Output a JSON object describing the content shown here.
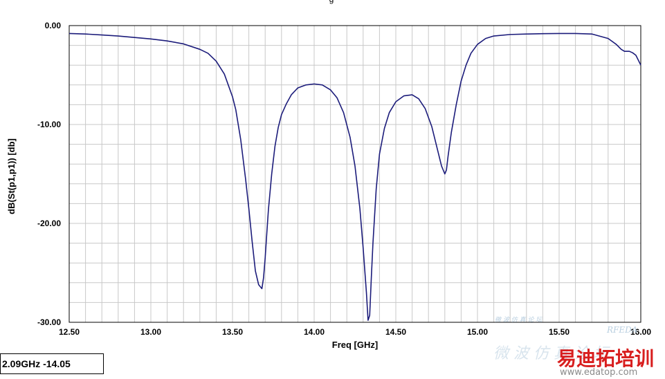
{
  "chart_data": {
    "type": "line",
    "title": "",
    "title_fragment": "g",
    "xlabel": "Freq [GHz]",
    "ylabel": "dB(St(p1,p1)) [db]",
    "xlim": [
      12.5,
      16.0
    ],
    "ylim": [
      -30,
      0
    ],
    "x_ticks": [
      "12.50",
      "13.00",
      "13.50",
      "14.00",
      "14.50",
      "15.00",
      "15.50",
      "16.00"
    ],
    "y_ticks": [
      "0.00",
      "-10.00",
      "-20.00",
      "-30.00"
    ],
    "grid": true,
    "line_color": "#1b1b7a",
    "series": [
      {
        "x": [
          12.5,
          12.6,
          12.7,
          12.8,
          12.9,
          13.0,
          13.1,
          13.2,
          13.3,
          13.35,
          13.4,
          13.45,
          13.5,
          13.52,
          13.55,
          13.58,
          13.6,
          13.62,
          13.64,
          13.66,
          13.68,
          13.69,
          13.7,
          13.71,
          13.72,
          13.74,
          13.76,
          13.78,
          13.8,
          13.83,
          13.86,
          13.9,
          13.95,
          14.0,
          14.05,
          14.1,
          14.14,
          14.18,
          14.22,
          14.25,
          14.28,
          14.3,
          14.32,
          14.33,
          14.34,
          14.35,
          14.36,
          14.38,
          14.4,
          14.43,
          14.46,
          14.5,
          14.55,
          14.6,
          14.64,
          14.68,
          14.72,
          14.75,
          14.78,
          14.8,
          14.81,
          14.82,
          14.84,
          14.87,
          14.9,
          14.93,
          14.96,
          15.0,
          15.05,
          15.1,
          15.2,
          15.3,
          15.4,
          15.5,
          15.6,
          15.7,
          15.8,
          15.85,
          15.88,
          15.9,
          15.93,
          15.95,
          15.97,
          16.0
        ],
        "y": [
          -0.8,
          -0.85,
          -0.95,
          -1.05,
          -1.2,
          -1.35,
          -1.55,
          -1.85,
          -2.4,
          -2.8,
          -3.6,
          -4.9,
          -7.2,
          -8.5,
          -11.5,
          -15.5,
          -18.5,
          -21.8,
          -24.8,
          -26.2,
          -26.6,
          -25.5,
          -23.5,
          -21.0,
          -18.6,
          -15.0,
          -12.2,
          -10.3,
          -9.0,
          -7.9,
          -7.0,
          -6.3,
          -6.0,
          -5.9,
          -6.0,
          -6.5,
          -7.3,
          -8.8,
          -11.3,
          -14.2,
          -18.5,
          -22.5,
          -27.0,
          -29.8,
          -29.3,
          -25.5,
          -22.0,
          -16.5,
          -13.0,
          -10.4,
          -8.8,
          -7.7,
          -7.1,
          -7.0,
          -7.4,
          -8.4,
          -10.2,
          -12.2,
          -14.2,
          -15.0,
          -14.6,
          -13.2,
          -10.8,
          -8.0,
          -5.6,
          -4.0,
          -2.8,
          -1.9,
          -1.3,
          -1.05,
          -0.9,
          -0.85,
          -0.82,
          -0.8,
          -0.8,
          -0.85,
          -1.3,
          -1.9,
          -2.4,
          -2.6,
          -2.6,
          -2.75,
          -3.0,
          -4.0
        ]
      }
    ]
  },
  "marker_readout": "2.09GHz -14.05",
  "watermark": {
    "brand_text": "易迪拓培训",
    "url_text": "www.edatop.com",
    "faint_text": "微 波 仿 真 论 坛",
    "faint_small": "RFEDA"
  }
}
